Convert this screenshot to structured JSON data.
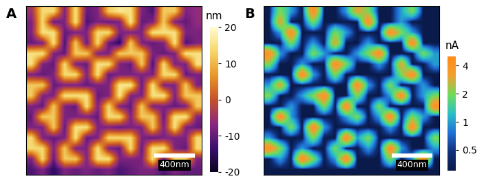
{
  "chart_data": [
    {
      "type": "heatmap",
      "title": "A",
      "tick_labels": false,
      "scale_bar": "400nm",
      "colorbar": {
        "label": "nm",
        "range": [
          -20,
          20
        ],
        "ticks": [
          -20,
          -10,
          0,
          10,
          20
        ]
      },
      "cells": [
        [
          -5,
          14,
          14,
          -8,
          15,
          -10,
          -8,
          12,
          16,
          15,
          -8,
          -12,
          12,
          12,
          -8,
          -6
        ],
        [
          -8,
          14,
          -10,
          -8,
          15,
          -12,
          -8,
          -10,
          -8,
          16,
          -10,
          -8,
          12,
          -8,
          -10,
          -6
        ],
        [
          -8,
          15,
          15,
          -10,
          -8,
          -8,
          14,
          14,
          -8,
          -8,
          -8,
          15,
          15,
          15,
          -8,
          -8
        ],
        [
          -10,
          -8,
          15,
          -12,
          12,
          -10,
          14,
          -10,
          -15,
          12,
          -8,
          -10,
          -8,
          15,
          -12,
          -8
        ],
        [
          15,
          15,
          -8,
          -10,
          12,
          12,
          -8,
          -8,
          12,
          12,
          12,
          -8,
          -10,
          -8,
          15,
          15
        ],
        [
          15,
          -8,
          -10,
          14,
          -8,
          -10,
          15,
          15,
          -8,
          -10,
          12,
          -12,
          14,
          -8,
          -8,
          15
        ],
        [
          -8,
          -10,
          -8,
          14,
          14,
          -8,
          15,
          -10,
          -8,
          -8,
          -8,
          -8,
          14,
          14,
          -10,
          -8
        ],
        [
          12,
          12,
          -10,
          -8,
          -8,
          -10,
          -8,
          -8,
          16,
          16,
          -10,
          15,
          -8,
          -8,
          12,
          -8
        ],
        [
          12,
          -8,
          -8,
          15,
          15,
          15,
          -10,
          -8,
          16,
          -8,
          -8,
          15,
          15,
          -8,
          12,
          12
        ],
        [
          -8,
          -10,
          12,
          -8,
          -10,
          15,
          -8,
          14,
          -8,
          -10,
          12,
          -8,
          -8,
          -10,
          -8,
          12
        ],
        [
          -10,
          12,
          12,
          -8,
          -8,
          -8,
          -10,
          14,
          14,
          -8,
          12,
          12,
          -10,
          15,
          15,
          -8
        ],
        [
          -8,
          -8,
          12,
          -10,
          15,
          15,
          -8,
          -8,
          -10,
          -8,
          -8,
          12,
          -8,
          15,
          -8,
          -10
        ],
        [
          14,
          -8,
          -10,
          -8,
          15,
          -10,
          -8,
          14,
          14,
          14,
          -8,
          -10,
          -8,
          -8,
          -8,
          14
        ],
        [
          14,
          14,
          -8,
          12,
          -8,
          -8,
          15,
          -8,
          -10,
          14,
          -10,
          15,
          15,
          -8,
          -10,
          14
        ],
        [
          -8,
          14,
          -10,
          12,
          12,
          -8,
          15,
          15,
          -8,
          -8,
          -8,
          15,
          -10,
          14,
          14,
          -8
        ],
        [
          -12,
          -8,
          -15,
          -8,
          -10,
          -8,
          -10,
          -8,
          -12,
          -10,
          -8,
          -8,
          -12,
          -8,
          -10,
          -10
        ]
      ]
    },
    {
      "type": "heatmap",
      "title": "B",
      "tick_labels": false,
      "scale_bar": "400nm",
      "log": true,
      "colorbar": {
        "label": "nA",
        "range": [
          0.3,
          5
        ],
        "ticks": [
          0.5,
          1,
          2,
          4
        ]
      },
      "cells": [
        [
          0.3,
          2,
          1,
          0.3,
          4,
          0.3,
          0.3,
          1,
          3,
          2,
          0.3,
          0.3,
          1,
          2,
          0.3,
          0.3
        ],
        [
          0.3,
          3,
          0.3,
          0.3,
          2,
          0.3,
          0.3,
          0.3,
          0.3,
          4,
          0.3,
          0.3,
          1,
          0.3,
          0.3,
          0.3
        ],
        [
          0.3,
          1,
          4,
          0.3,
          0.3,
          0.3,
          2,
          1,
          0.3,
          0.3,
          0.3,
          4,
          2,
          1,
          0.3,
          0.3
        ],
        [
          0.3,
          0.3,
          2,
          0.3,
          1,
          0.3,
          3,
          0.3,
          0.3,
          1,
          0.3,
          0.3,
          0.3,
          4,
          0.3,
          0.3
        ],
        [
          4,
          1,
          0.3,
          0.3,
          2,
          1,
          0.3,
          0.3,
          1,
          2,
          4,
          0.3,
          0.3,
          0.3,
          2,
          1
        ],
        [
          2,
          0.3,
          0.3,
          1,
          0.3,
          0.3,
          4,
          2,
          0.3,
          0.3,
          1,
          0.3,
          3,
          0.3,
          0.3,
          1
        ],
        [
          0.3,
          0.3,
          0.3,
          4,
          1,
          0.3,
          2,
          0.3,
          0.3,
          0.3,
          0.3,
          0.3,
          2,
          4,
          0.3,
          0.3
        ],
        [
          1,
          3,
          0.3,
          0.3,
          0.3,
          0.3,
          0.3,
          0.3,
          4,
          1,
          0.3,
          2,
          0.3,
          0.3,
          1,
          0.3
        ],
        [
          2,
          0.3,
          0.3,
          1,
          2,
          4,
          0.3,
          0.3,
          2,
          0.3,
          0.3,
          1,
          4,
          0.3,
          1,
          2
        ],
        [
          0.3,
          0.3,
          1,
          0.3,
          0.3,
          2,
          0.3,
          4,
          0.3,
          0.3,
          2,
          0.3,
          0.3,
          0.3,
          0.3,
          4
        ],
        [
          0.3,
          4,
          1,
          0.3,
          0.3,
          0.3,
          0.3,
          1,
          2,
          0.3,
          1,
          4,
          0.3,
          2,
          1,
          0.3
        ],
        [
          0.3,
          0.3,
          2,
          0.3,
          4,
          1,
          0.3,
          0.3,
          0.3,
          0.3,
          0.3,
          1,
          0.3,
          4,
          0.3,
          0.3
        ],
        [
          1,
          0.3,
          0.3,
          0.3,
          2,
          0.3,
          0.3,
          4,
          1,
          2,
          0.3,
          0.3,
          0.3,
          0.3,
          0.3,
          2
        ],
        [
          4,
          2,
          0.3,
          1,
          0.3,
          0.3,
          2,
          0.3,
          0.3,
          1,
          0.3,
          4,
          1,
          0.3,
          0.3,
          1
        ],
        [
          0.3,
          1,
          0.3,
          4,
          2,
          0.3,
          1,
          4,
          0.3,
          0.3,
          0.3,
          2,
          0.3,
          1,
          4,
          0.3
        ],
        [
          0.3,
          0.3,
          0.3,
          0.3,
          0.3,
          0.3,
          0.3,
          0.3,
          0.3,
          0.3,
          0.3,
          0.3,
          0.3,
          0.3,
          0.3,
          0.3
        ]
      ]
    }
  ]
}
